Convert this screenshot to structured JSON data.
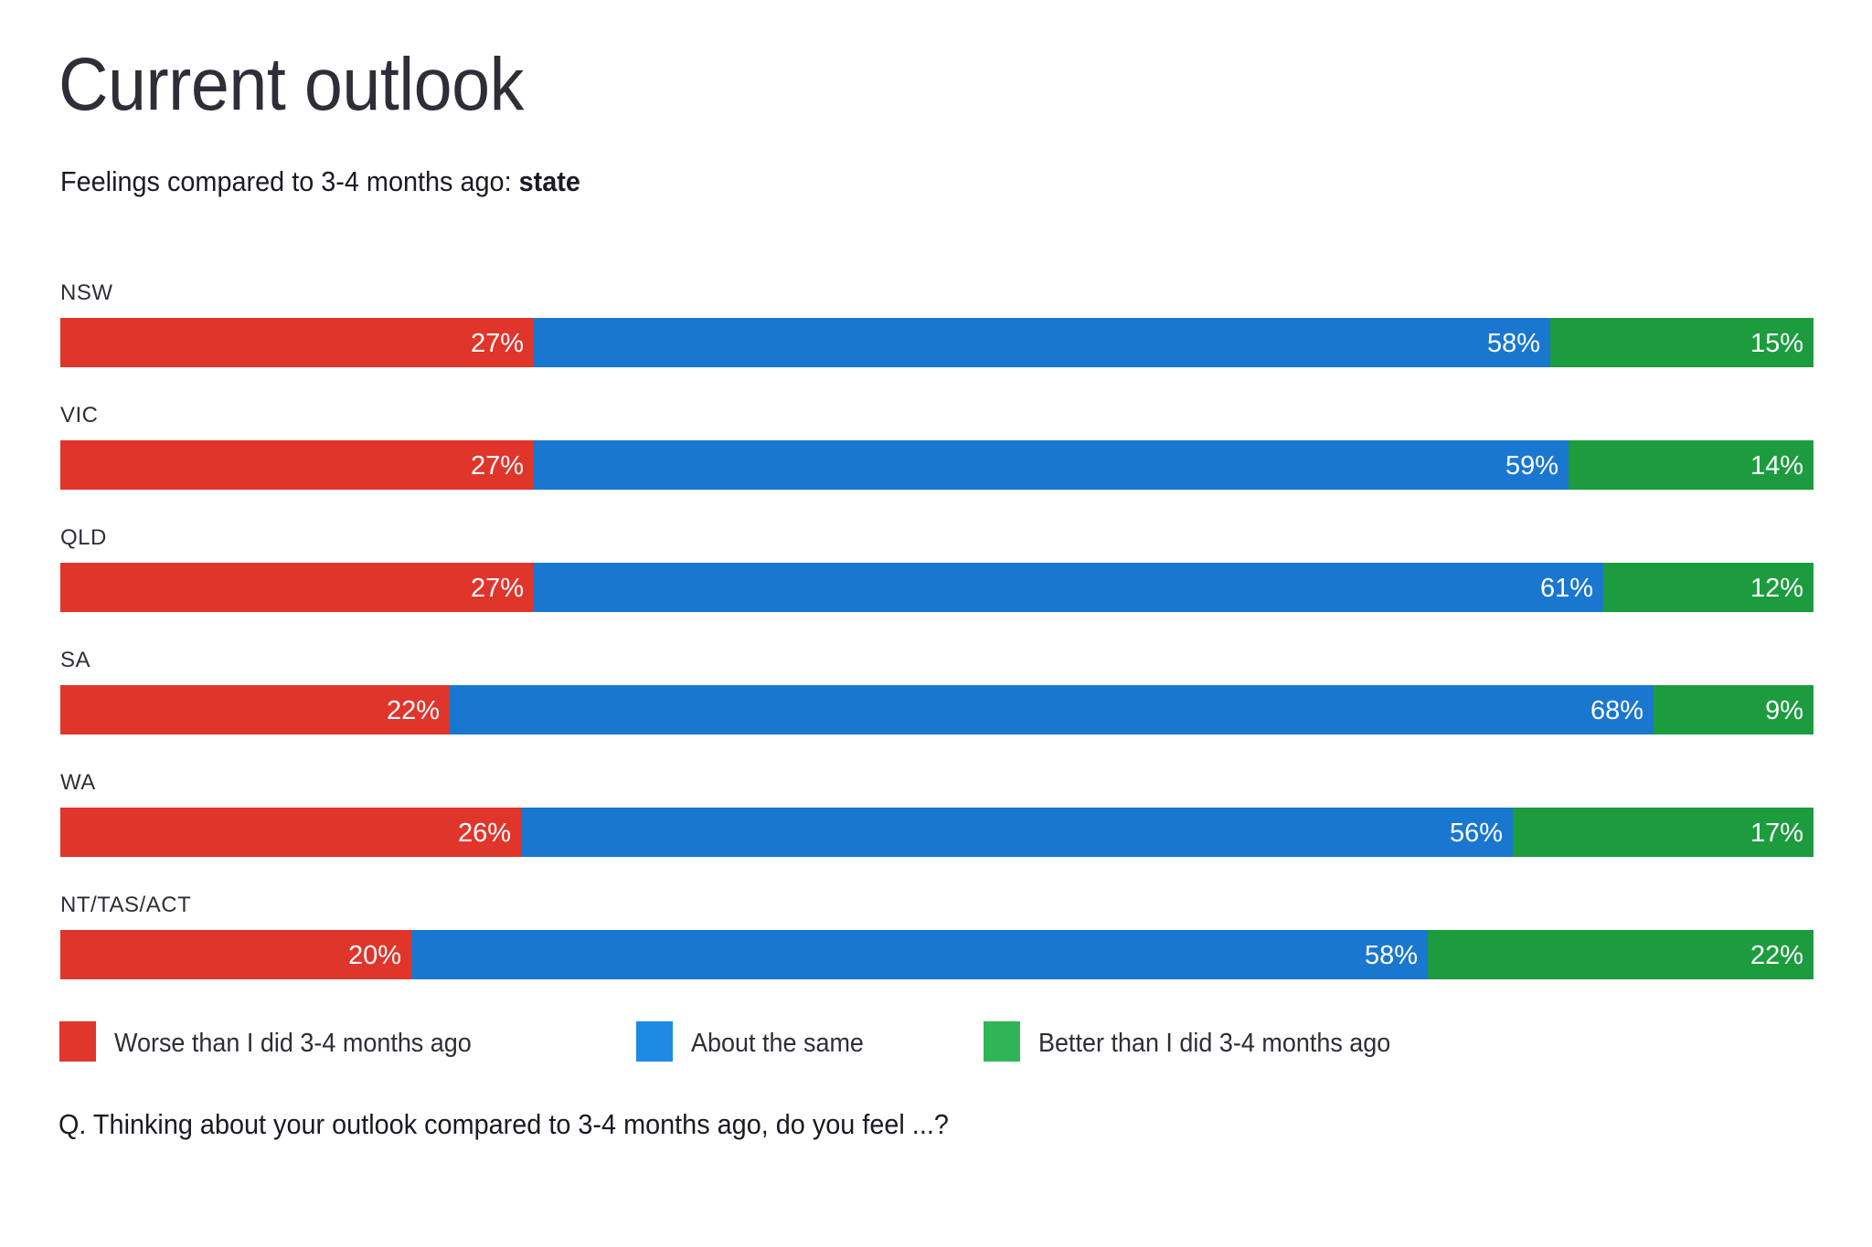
{
  "chart_data": {
    "type": "bar",
    "orientation": "horizontal",
    "stacked": true,
    "title": "Current outlook",
    "subtitle": "Feelings compared to 3-4 months ago:",
    "subtitle_emphasis": "state",
    "categories": [
      "NSW",
      "VIC",
      "QLD",
      "SA",
      "WA",
      "NT/TAS/ACT"
    ],
    "series": [
      {
        "name": "Worse than I did 3-4 months ago",
        "color": "#e0352b",
        "legend_color": "#e0362c",
        "values": [
          27,
          27,
          27,
          22,
          26,
          20
        ]
      },
      {
        "name": "About the same",
        "color": "#1a77cf",
        "legend_color": "#1e8ae6",
        "values": [
          58,
          59,
          61,
          68,
          56,
          58
        ]
      },
      {
        "name": "Better than I did 3-4 months ago",
        "color": "#1c9c3e",
        "legend_color": "#2fb558",
        "values": [
          15,
          14,
          12,
          9,
          17,
          22
        ]
      }
    ],
    "value_suffix": "%",
    "xlabel": "",
    "ylabel": "",
    "grid": false,
    "legend_position": "bottom-left",
    "footnote": "Q. Thinking about your outlook compared to 3-4 months ago, do you feel ...?"
  }
}
